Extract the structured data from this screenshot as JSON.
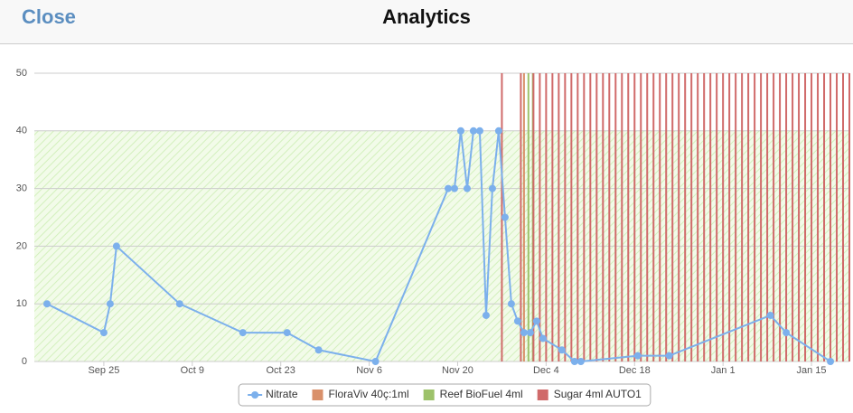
{
  "header": {
    "close": "Close",
    "title": "Analytics"
  },
  "chart_data": {
    "type": "line",
    "xlim": [
      -11,
      118
    ],
    "ylim": [
      0,
      50
    ],
    "yticks": [
      0,
      10,
      20,
      30,
      40,
      50
    ],
    "xticks": [
      {
        "value": 0,
        "label": "Sep 25"
      },
      {
        "value": 14,
        "label": "Oct 9"
      },
      {
        "value": 28,
        "label": "Oct 23"
      },
      {
        "value": 42,
        "label": "Nov 6"
      },
      {
        "value": 56,
        "label": "Nov 20"
      },
      {
        "value": 70,
        "label": "Dec 4"
      },
      {
        "value": 84,
        "label": "Dec 18"
      },
      {
        "value": 98,
        "label": "Jan 1"
      },
      {
        "value": 112,
        "label": "Jan 15"
      }
    ],
    "grid": true,
    "target_band": [
      0,
      40
    ],
    "legend": "bottom",
    "series": [
      {
        "name": "Nitrate",
        "color": "#7cb0ec",
        "x": [
          -9,
          0,
          1,
          2,
          12,
          22,
          29,
          34,
          43,
          54.5,
          55.5,
          56.5,
          57.5,
          58.5,
          59.5,
          60.5,
          61.5,
          62.5,
          63.5,
          64.5,
          65.5,
          66.5,
          67.5,
          68.5,
          69.5,
          72.5,
          74.5,
          75.5,
          84.5,
          89.5,
          105.5,
          108,
          115
        ],
        "values": [
          10,
          5,
          10,
          20,
          10,
          5,
          5,
          2,
          0,
          30,
          30,
          40,
          30,
          40,
          40,
          8,
          30,
          40,
          25,
          10,
          7,
          5,
          5,
          7,
          4,
          2,
          0,
          0,
          1,
          1,
          8,
          5,
          0
        ]
      },
      {
        "name": "FloraViv 40ç:1ml",
        "color": "#d9906a",
        "events": [
          66.5
        ]
      },
      {
        "name": "Reef BioFuel 4ml",
        "color": "#9dc26a",
        "events": [
          67.2,
          67.9
        ]
      },
      {
        "name": "Sugar 4ml AUTO1",
        "color": "#d06a6a",
        "events": [
          63,
          66,
          68,
          69,
          70,
          71,
          72,
          73,
          74,
          75,
          76,
          77,
          78,
          79,
          80,
          81,
          82,
          83,
          84,
          85,
          86,
          87,
          88,
          89,
          90,
          91,
          92,
          93,
          94,
          95,
          96,
          97,
          98,
          99,
          100,
          101,
          102,
          103,
          104,
          105,
          106,
          107,
          108,
          109,
          110,
          111,
          112,
          113,
          114,
          115,
          116,
          117,
          118
        ]
      }
    ]
  }
}
